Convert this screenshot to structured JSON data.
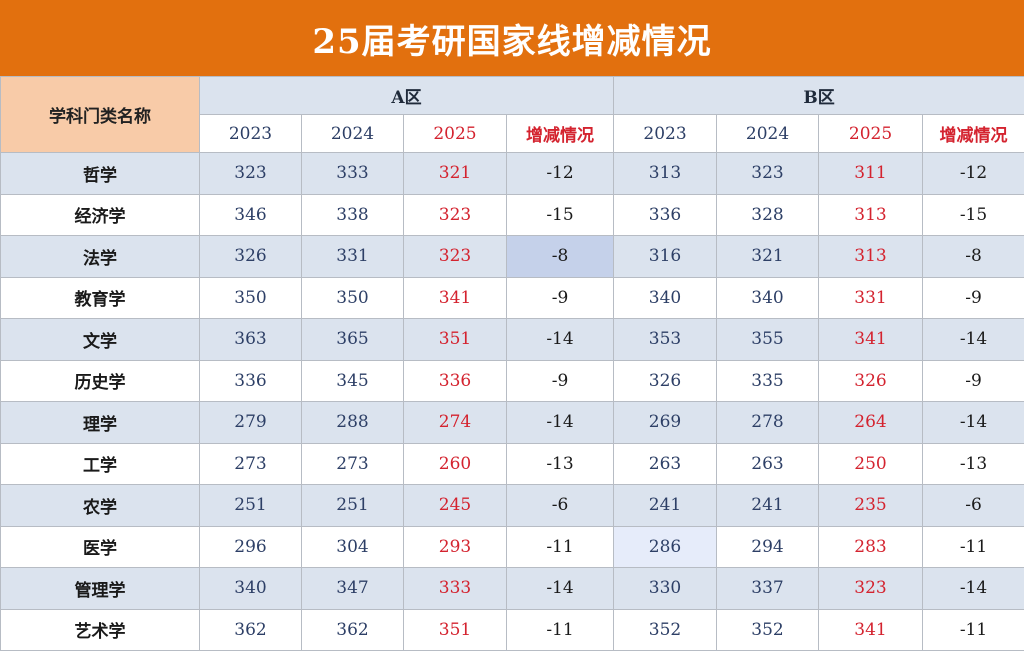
{
  "title": "25届考研国家线增减情况",
  "header": {
    "subject_label": "学科门类名称",
    "zone_a": "A区",
    "zone_b": "B区",
    "years": [
      "2023",
      "2024",
      "2025"
    ],
    "change_label": "增减情况"
  },
  "colors": {
    "title_bar": "#e2700e",
    "subject_header": "#f8cba8",
    "band": "#dbe3ee",
    "highlight_text": "#d4232f",
    "number_text": "#2d3f66"
  },
  "rows": [
    {
      "subject": "哲学",
      "a": [
        "323",
        "333",
        "321",
        "-12"
      ],
      "b": [
        "313",
        "323",
        "311",
        "-12"
      ]
    },
    {
      "subject": "经济学",
      "a": [
        "346",
        "338",
        "323",
        "-15"
      ],
      "b": [
        "336",
        "328",
        "313",
        "-15"
      ]
    },
    {
      "subject": "法学",
      "a": [
        "326",
        "331",
        "323",
        "-8"
      ],
      "b": [
        "316",
        "321",
        "313",
        "-8"
      ]
    },
    {
      "subject": "教育学",
      "a": [
        "350",
        "350",
        "341",
        "-9"
      ],
      "b": [
        "340",
        "340",
        "331",
        "-9"
      ]
    },
    {
      "subject": "文学",
      "a": [
        "363",
        "365",
        "351",
        "-14"
      ],
      "b": [
        "353",
        "355",
        "341",
        "-14"
      ]
    },
    {
      "subject": "历史学",
      "a": [
        "336",
        "345",
        "336",
        "-9"
      ],
      "b": [
        "326",
        "335",
        "326",
        "-9"
      ]
    },
    {
      "subject": "理学",
      "a": [
        "279",
        "288",
        "274",
        "-14"
      ],
      "b": [
        "269",
        "278",
        "264",
        "-14"
      ]
    },
    {
      "subject": "工学",
      "a": [
        "273",
        "273",
        "260",
        "-13"
      ],
      "b": [
        "263",
        "263",
        "250",
        "-13"
      ]
    },
    {
      "subject": "农学",
      "a": [
        "251",
        "251",
        "245",
        "-6"
      ],
      "b": [
        "241",
        "241",
        "235",
        "-6"
      ]
    },
    {
      "subject": "医学",
      "a": [
        "296",
        "304",
        "293",
        "-11"
      ],
      "b": [
        "286",
        "294",
        "283",
        "-11"
      ]
    },
    {
      "subject": "管理学",
      "a": [
        "340",
        "347",
        "333",
        "-14"
      ],
      "b": [
        "330",
        "337",
        "323",
        "-14"
      ]
    },
    {
      "subject": "艺术学",
      "a": [
        "362",
        "362",
        "351",
        "-11"
      ],
      "b": [
        "352",
        "352",
        "341",
        "-11"
      ]
    }
  ]
}
